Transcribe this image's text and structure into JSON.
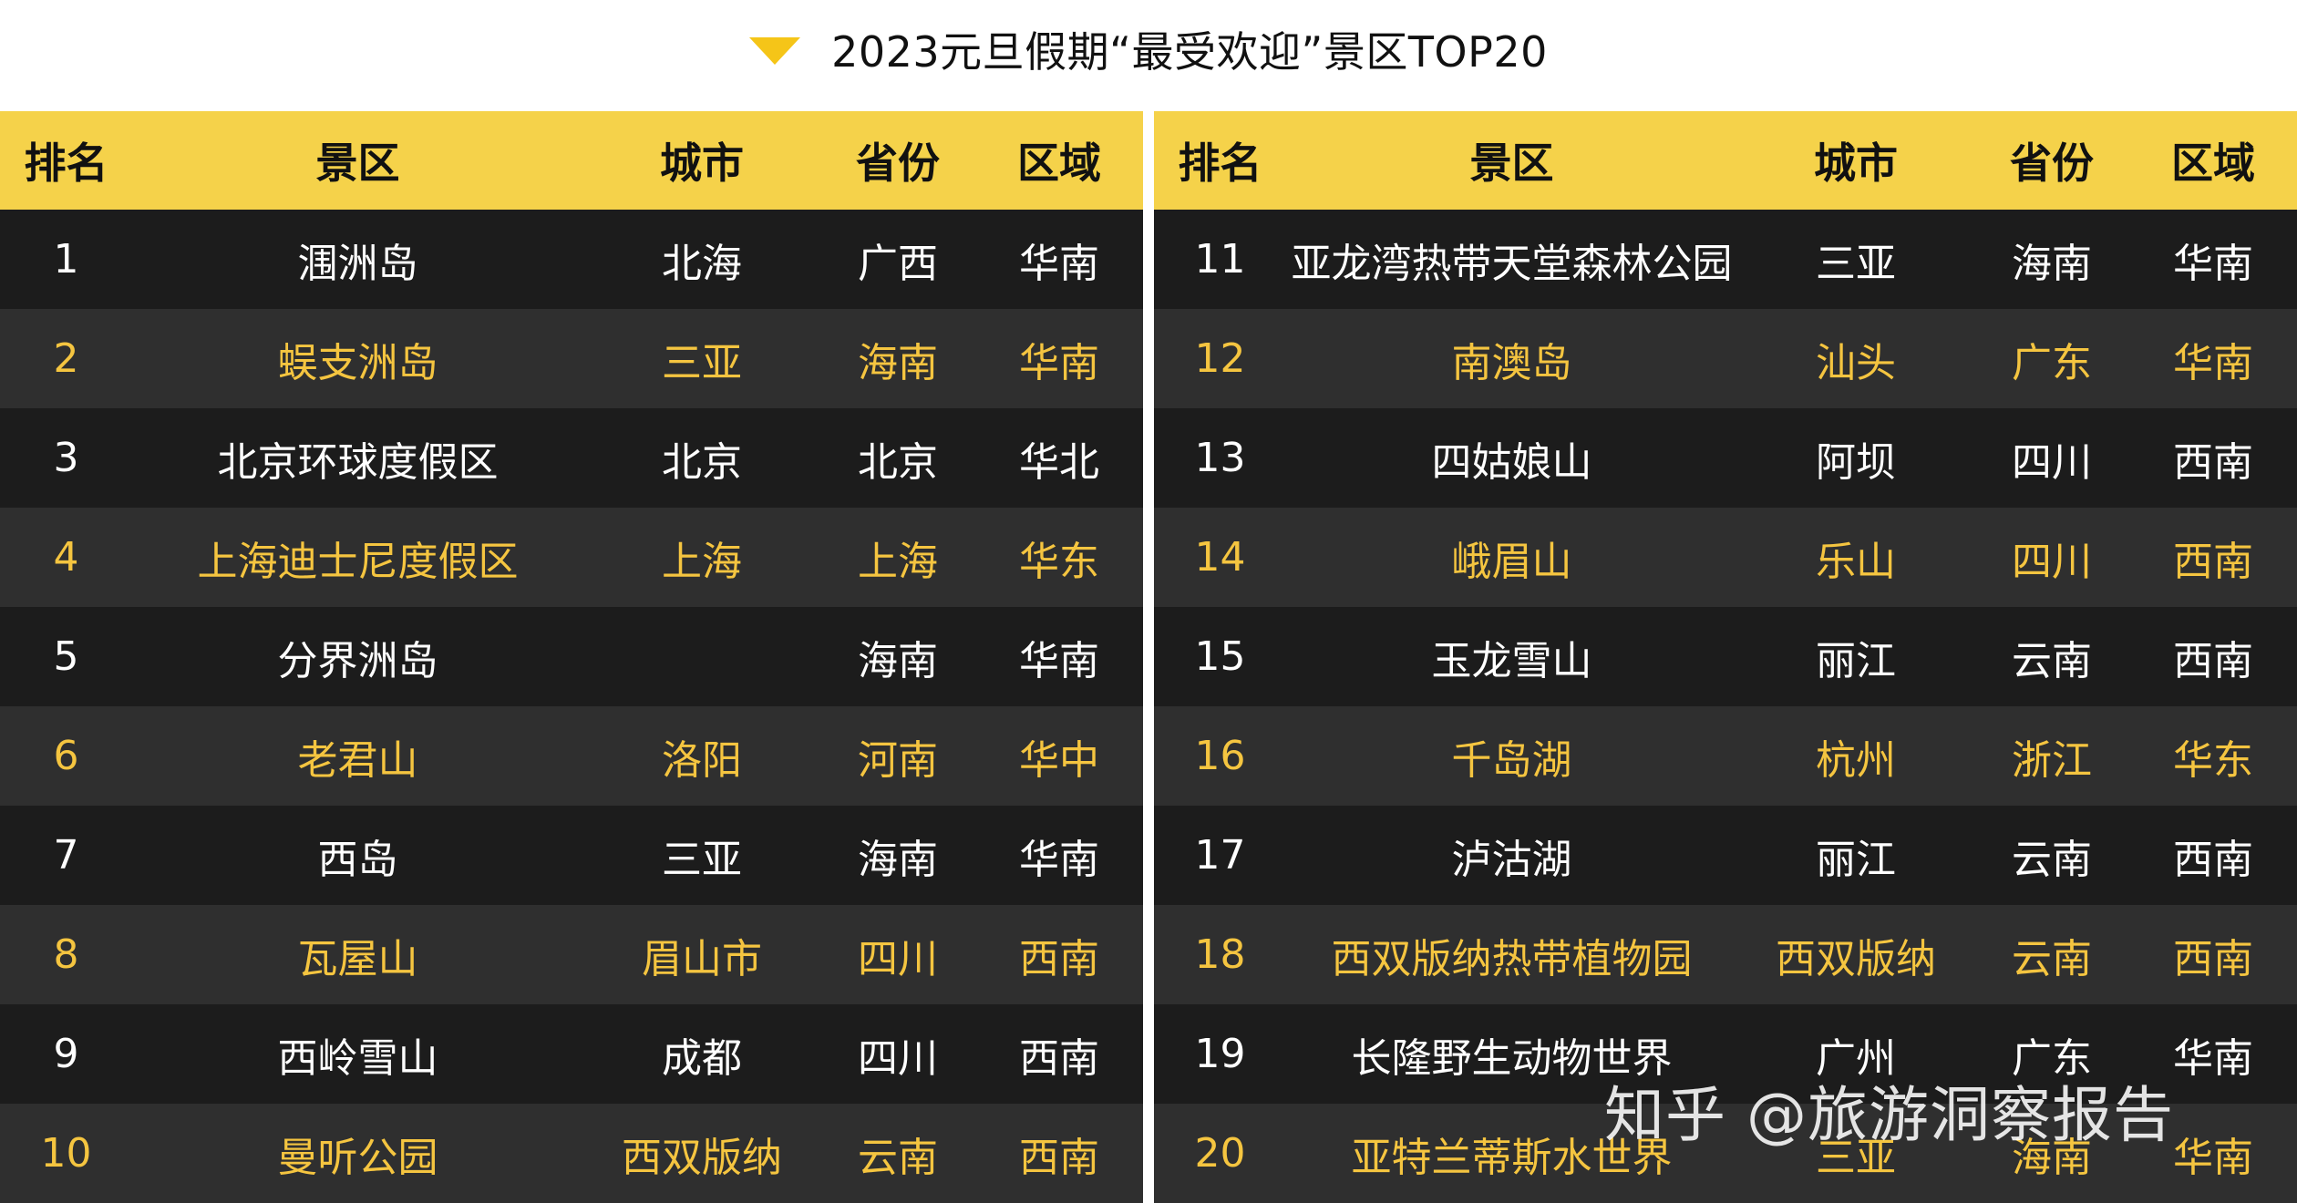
{
  "title": "2023元旦假期“最受欢迎”景区TOP20",
  "colors": {
    "accent": "#f5d24a",
    "row_dark": "#1c1c1c",
    "row_grey": "#2f2f2f",
    "highlight_text": "#f5c540"
  },
  "headers": {
    "rank": "排名",
    "spot": "景区",
    "city": "城市",
    "province": "省份",
    "region": "区域"
  },
  "left": [
    {
      "rank": "1",
      "spot": "涠洲岛",
      "city": "北海",
      "province": "广西",
      "region": "华南"
    },
    {
      "rank": "2",
      "spot": "蜈支洲岛",
      "city": "三亚",
      "province": "海南",
      "region": "华南"
    },
    {
      "rank": "3",
      "spot": "北京环球度假区",
      "city": "北京",
      "province": "北京",
      "region": "华北"
    },
    {
      "rank": "4",
      "spot": "上海迪士尼度假区",
      "city": "上海",
      "province": "上海",
      "region": "华东"
    },
    {
      "rank": "5",
      "spot": "分界洲岛",
      "city": "",
      "province": "海南",
      "region": "华南"
    },
    {
      "rank": "6",
      "spot": "老君山",
      "city": "洛阳",
      "province": "河南",
      "region": "华中"
    },
    {
      "rank": "7",
      "spot": "西岛",
      "city": "三亚",
      "province": "海南",
      "region": "华南"
    },
    {
      "rank": "8",
      "spot": "瓦屋山",
      "city": "眉山市",
      "province": "四川",
      "region": "西南"
    },
    {
      "rank": "9",
      "spot": "西岭雪山",
      "city": "成都",
      "province": "四川",
      "region": "西南"
    },
    {
      "rank": "10",
      "spot": "曼听公园",
      "city": "西双版纳",
      "province": "云南",
      "region": "西南"
    }
  ],
  "right": [
    {
      "rank": "11",
      "spot": "亚龙湾热带天堂森林公园",
      "city": "三亚",
      "province": "海南",
      "region": "华南"
    },
    {
      "rank": "12",
      "spot": "南澳岛",
      "city": "汕头",
      "province": "广东",
      "region": "华南"
    },
    {
      "rank": "13",
      "spot": "四姑娘山",
      "city": "阿坝",
      "province": "四川",
      "region": "西南"
    },
    {
      "rank": "14",
      "spot": "峨眉山",
      "city": "乐山",
      "province": "四川",
      "region": "西南"
    },
    {
      "rank": "15",
      "spot": "玉龙雪山",
      "city": "丽江",
      "province": "云南",
      "region": "西南"
    },
    {
      "rank": "16",
      "spot": "千岛湖",
      "city": "杭州",
      "province": "浙江",
      "region": "华东"
    },
    {
      "rank": "17",
      "spot": "泸沽湖",
      "city": "丽江",
      "province": "云南",
      "region": "西南"
    },
    {
      "rank": "18",
      "spot": "西双版纳热带植物园",
      "city": "西双版纳",
      "province": "云南",
      "region": "西南"
    },
    {
      "rank": "19",
      "spot": "长隆野生动物世界",
      "city": "广州",
      "province": "广东",
      "region": "华南"
    },
    {
      "rank": "20",
      "spot": "亚特兰蒂斯水世界",
      "city": "三亚",
      "province": "海南",
      "region": "华南"
    }
  ],
  "watermark": "知乎 @旅游洞察报告"
}
